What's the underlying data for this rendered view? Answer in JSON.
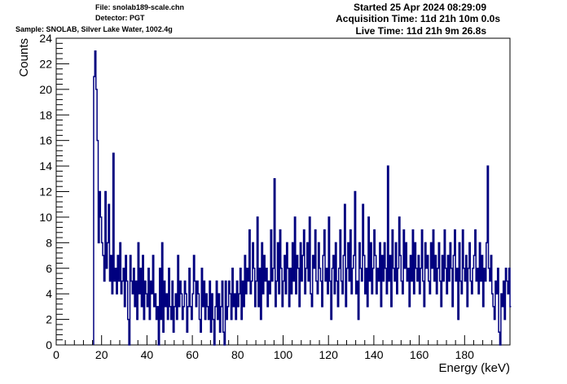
{
  "header": {
    "file": "File: snolab189-scale.chn",
    "detector": "Detector: PGT",
    "sample": "Sample: SNOLAB, Silver Lake Water, 1002.4g",
    "started": "Started 25 Apr 2024 08:29:09",
    "acquisition": "Acquisition Time: 11d 21h 10m 0.0s",
    "live": "Live Time: 11d 21h 9m 26.8s"
  },
  "colors": {
    "line": "#00007f",
    "frame": "#000000",
    "background": "#ffffff"
  },
  "chart_data": {
    "type": "line",
    "style": "histogram step",
    "xlabel": "Energy (keV)",
    "ylabel": "Counts",
    "xlim": [
      0,
      200
    ],
    "ylim": [
      0,
      24
    ],
    "xticks": [
      0,
      20,
      40,
      60,
      80,
      100,
      120,
      140,
      160,
      180
    ],
    "yticks": [
      0,
      2,
      4,
      6,
      8,
      10,
      12,
      14,
      16,
      18,
      20,
      22,
      24
    ],
    "grid": false,
    "bin_width": 0.5,
    "x_start": 16.5,
    "values": [
      21,
      23,
      20,
      16,
      8,
      12,
      10,
      8,
      7,
      5,
      12,
      6,
      8,
      11,
      5,
      7,
      4,
      15,
      5,
      6,
      4,
      7,
      5,
      8,
      4,
      5,
      6,
      3,
      7,
      5,
      2,
      0,
      7,
      5,
      4,
      6,
      3,
      5,
      2,
      8,
      4,
      6,
      3,
      7,
      2,
      5,
      4,
      3,
      6,
      2,
      5,
      4,
      7,
      3,
      4,
      2,
      3,
      0,
      6,
      2,
      8,
      1,
      5,
      3,
      4,
      2,
      6,
      3,
      2,
      5,
      1,
      3,
      4,
      2,
      7,
      3,
      5,
      4,
      2,
      3,
      5,
      4,
      1,
      3,
      6,
      3,
      2,
      4,
      7,
      5,
      3,
      5,
      4,
      2,
      1,
      6,
      3,
      5,
      2,
      4,
      3,
      2,
      5,
      1,
      4,
      2,
      0,
      3,
      5,
      2,
      4,
      1,
      3,
      5,
      1,
      0,
      5,
      2,
      3,
      5,
      4,
      2,
      6,
      3,
      4,
      2,
      5,
      3,
      4,
      6,
      2,
      5,
      3,
      7,
      4,
      6,
      5,
      9,
      4,
      5,
      8,
      6,
      3,
      5,
      10,
      3,
      6,
      2,
      8,
      4,
      7,
      5,
      6,
      3,
      5,
      4,
      9,
      5,
      6,
      13,
      3,
      5,
      8,
      4,
      9,
      6,
      3,
      5,
      7,
      4,
      8,
      6,
      3,
      6,
      4,
      8,
      5,
      10,
      4,
      7,
      6,
      3,
      8,
      5,
      7,
      9,
      4,
      6,
      8,
      5,
      10,
      4,
      3,
      7,
      6,
      9,
      5,
      4,
      8,
      6,
      5,
      3,
      7,
      9,
      5,
      6,
      4,
      10,
      5,
      2,
      6,
      7,
      4,
      8,
      5,
      3,
      6,
      9,
      5,
      4,
      7,
      11,
      3,
      6,
      8,
      5,
      9,
      4,
      6,
      7,
      12,
      4,
      5,
      2,
      8,
      6,
      5,
      11,
      7,
      4,
      6,
      3,
      10,
      5,
      8,
      4,
      6,
      9,
      7,
      4,
      6,
      5,
      8,
      3,
      7,
      5,
      8,
      6,
      4,
      14,
      5,
      7,
      3,
      9,
      6,
      5,
      8,
      4,
      6,
      10,
      7,
      5,
      4,
      9,
      6,
      8,
      5,
      6,
      3,
      7,
      5,
      9,
      4,
      8,
      6,
      5,
      7,
      4,
      6,
      9,
      5,
      3,
      8,
      6,
      7,
      5,
      4,
      8,
      6,
      9,
      5,
      7,
      4,
      6,
      8,
      5,
      3,
      7,
      5,
      9,
      6,
      4,
      7,
      5,
      8,
      6,
      3,
      7,
      9,
      5,
      6,
      2,
      8,
      5,
      4,
      9,
      6,
      5,
      7,
      3,
      6,
      8,
      5,
      4,
      6,
      7,
      9,
      5,
      6,
      4,
      8,
      5,
      7,
      3,
      6,
      5,
      8,
      14,
      6,
      5,
      7,
      4,
      3,
      2,
      5,
      4,
      6,
      1,
      0,
      4,
      3,
      5,
      2,
      6,
      5,
      4,
      6,
      3
    ]
  }
}
